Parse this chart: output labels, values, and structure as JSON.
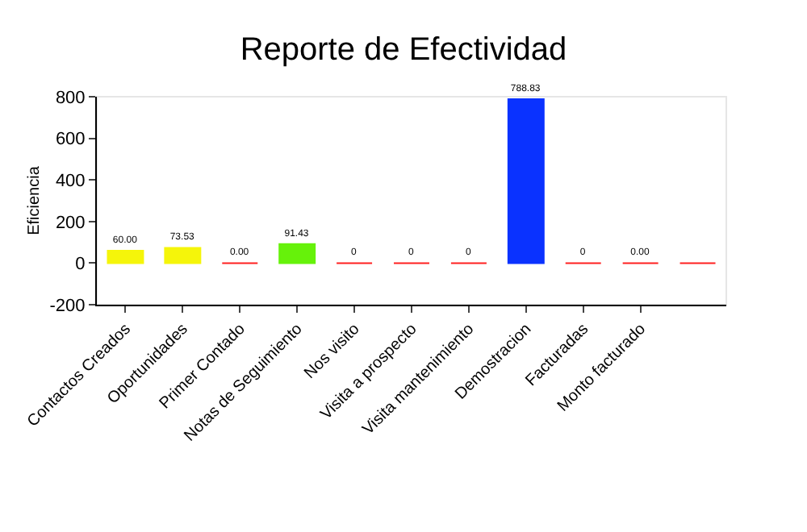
{
  "chart_data": {
    "type": "bar",
    "title": "Reporte de Efectividad",
    "ylabel": "Eficiencia",
    "categories": [
      "Contactos Creados",
      "Oportunidades",
      "Primer Contado",
      "Notas de Seguimiento",
      "Nos visito",
      "Visita a prospecto",
      "Visita mantenimiento",
      "Demostracion",
      "Facturadas",
      "Monto facturado",
      null
    ],
    "values": [
      60,
      73.53,
      0,
      91.43,
      0,
      0,
      0,
      788.83,
      0,
      0,
      0
    ],
    "value_labels": [
      "60.00",
      "73.53",
      "0.00",
      "91.43",
      "0",
      "0",
      "0",
      "788.83",
      "0",
      "0.00",
      null
    ],
    "colors": [
      "#f5f50a",
      "#f5f50a",
      "#ff2020",
      "#66f20a",
      "#ff2020",
      "#ff2020",
      "#ff2020",
      "#0a32ff",
      "#ff2020",
      "#ff2020",
      "#ff2020"
    ],
    "ylim": [
      -200,
      800
    ],
    "yticks": [
      -200,
      0,
      200,
      400,
      600,
      800
    ],
    "grid": false,
    "legend": false
  }
}
